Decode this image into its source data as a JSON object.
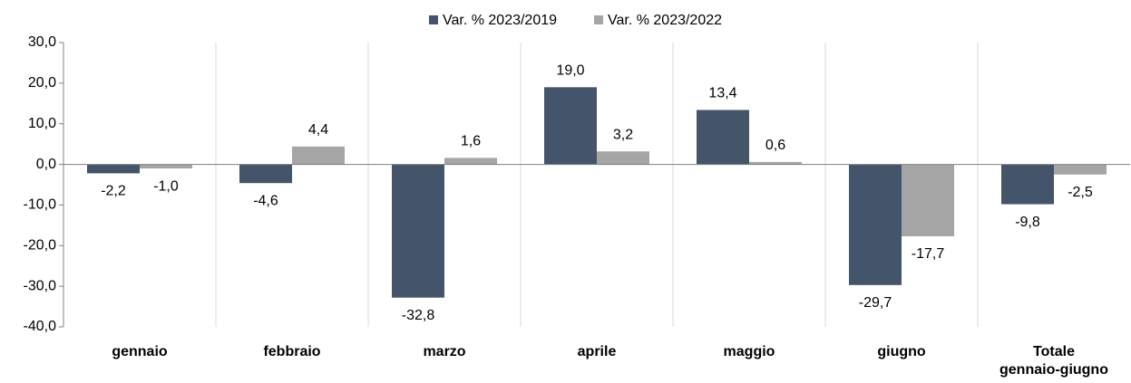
{
  "chart_data": {
    "type": "bar",
    "categories": [
      "gennaio",
      "febbraio",
      "marzo",
      "aprile",
      "maggio",
      "giugno",
      "Totale gennaio-giugno"
    ],
    "series": [
      {
        "name": "Var. % 2023/2019",
        "color": "#44546a",
        "values": [
          -2.2,
          -4.6,
          -32.8,
          19.0,
          13.4,
          -29.7,
          -9.8
        ],
        "value_labels": [
          "-2,2",
          "-4,6",
          "-32,8",
          "19,0",
          "13,4",
          "-29,7",
          "-9,8"
        ]
      },
      {
        "name": "Var. % 2023/2022",
        "color": "#a5a5a5",
        "values": [
          -1.0,
          4.4,
          1.6,
          3.2,
          0.6,
          -17.7,
          -2.5
        ],
        "value_labels": [
          "-1,0",
          "4,4",
          "1,6",
          "3,2",
          "0,6",
          "-17,7",
          "-2,5"
        ]
      }
    ],
    "ylim": [
      -40,
      30
    ],
    "yticks": [
      {
        "value": -40,
        "label": "-40,0"
      },
      {
        "value": -30,
        "label": "-30,0"
      },
      {
        "value": -20,
        "label": "-20,0"
      },
      {
        "value": -10,
        "label": "-10,0"
      },
      {
        "value": 0,
        "label": "0,0"
      },
      {
        "value": 10,
        "label": "10,0"
      },
      {
        "value": 20,
        "label": "20,0"
      },
      {
        "value": 30,
        "label": "30,0"
      }
    ],
    "legend": "top"
  }
}
